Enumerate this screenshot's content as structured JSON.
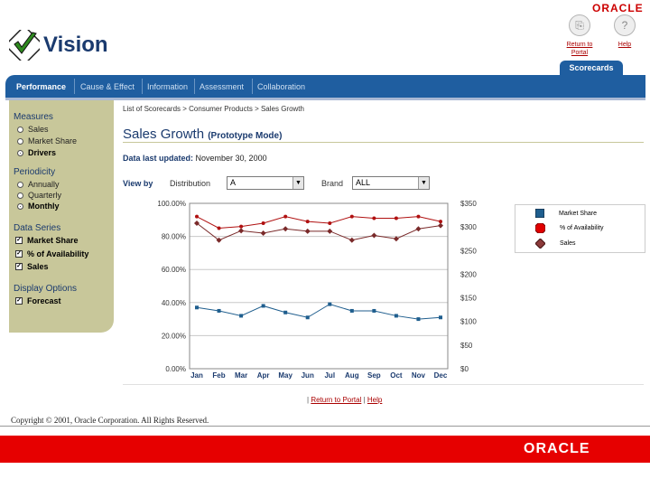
{
  "header": {
    "brand": "ORACLE",
    "app_name": "Vision",
    "return_portal": "Return to Portal",
    "help": "Help",
    "return_icon": "document-icon",
    "help_icon": "question-icon"
  },
  "tabs": [
    {
      "label": "Performance",
      "active": true
    },
    {
      "label": "Cause & Effect"
    },
    {
      "label": "Information"
    },
    {
      "label": "Assessment"
    },
    {
      "label": "Collaboration"
    }
  ],
  "scorecards_tab": "Scorecards",
  "sidebar": {
    "measures": {
      "title": "Measures",
      "options": [
        "Sales",
        "Market Share",
        "Drivers"
      ],
      "selected": "Drivers"
    },
    "periodicity": {
      "title": "Periodicity",
      "options": [
        "Annually",
        "Quarterly",
        "Monthly"
      ],
      "selected": "Monthly"
    },
    "data_series": {
      "title": "Data Series",
      "items": [
        "Market Share",
        "% of Availability",
        "Sales"
      ]
    },
    "display_options": {
      "title": "Display Options",
      "items": [
        "Forecast"
      ]
    }
  },
  "main": {
    "breadcrumb": "List of Scorecards > Consumer Products > Sales Growth",
    "title": "Sales Growth",
    "mode": "(Prototype Mode)",
    "updated_label": "Data last updated:",
    "updated_value": "November 30, 2000",
    "view_by": "View by",
    "filter1_label": "Distribution",
    "filter1_value": "A",
    "filter2_label": "Brand",
    "filter2_value": "ALL"
  },
  "chart_data": {
    "type": "line",
    "categories": [
      "Jan",
      "Feb",
      "Mar",
      "Apr",
      "May",
      "Jun",
      "Jul",
      "Aug",
      "Sep",
      "Oct",
      "Nov",
      "Dec"
    ],
    "y_left": {
      "ticks": [
        "100.00%",
        "80.00%",
        "60.00%",
        "40.00%",
        "20.00%",
        "0.00%"
      ],
      "range": [
        0,
        100
      ]
    },
    "y_right": {
      "ticks": [
        "$350",
        "$300",
        "$250",
        "$200",
        "$150",
        "$100",
        "$50",
        "$0"
      ],
      "range": [
        0,
        350
      ]
    },
    "series": [
      {
        "name": "Market Share",
        "axis": "left",
        "color": "#1f5e8e",
        "marker": "square",
        "values": [
          37,
          35,
          32,
          38,
          34,
          31,
          39,
          35,
          35,
          32,
          30,
          31
        ]
      },
      {
        "name": "% of Availability",
        "axis": "left",
        "color": "#b01010",
        "marker": "circle",
        "values": [
          92,
          85,
          86,
          88,
          92,
          89,
          88,
          92,
          91,
          91,
          92,
          89
        ]
      },
      {
        "name": "Sales",
        "axis": "right",
        "color": "#7a2a2a",
        "marker": "diamond",
        "values": [
          308,
          272,
          292,
          287,
          296,
          291,
          291,
          272,
          282,
          275,
          296,
          303
        ]
      }
    ]
  },
  "footer": {
    "return_portal": "Return to Portal",
    "help": "Help",
    "copyright": "Copyright © 2001, Oracle Corporation. All Rights Reserved.",
    "brand": "ORACLE"
  }
}
